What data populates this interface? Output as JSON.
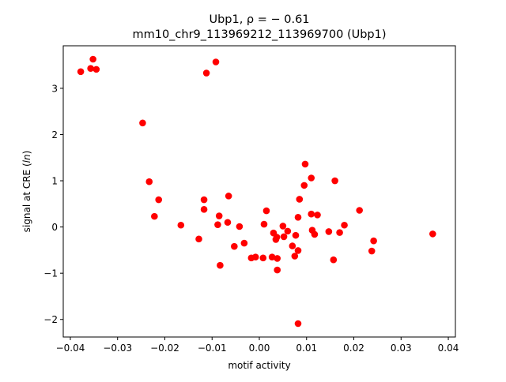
{
  "chart_data": {
    "type": "scatter",
    "title_line1": "Ubp1, ρ = − 0.61",
    "title_line2": "mm10_chr9_113969212_113969700 (Ubp1)",
    "xlabel": "motif activity",
    "ylabel": "signal at CRE (ln)",
    "xlim": [
      -0.0415,
      0.0415
    ],
    "ylim": [
      -2.38,
      3.92
    ],
    "x_ticks": [
      -0.04,
      -0.03,
      -0.02,
      -0.01,
      0.0,
      0.01,
      0.02,
      0.03,
      0.04
    ],
    "x_tick_labels": [
      "−0.04",
      "−0.03",
      "−0.02",
      "−0.01",
      "0.00",
      "0.01",
      "0.02",
      "0.03",
      "0.04"
    ],
    "y_ticks": [
      -2,
      -1,
      0,
      1,
      2,
      3
    ],
    "y_tick_labels": [
      "−2",
      "−1",
      "0",
      "1",
      "2",
      "3"
    ],
    "grid": false,
    "marker_color": "#ff0000",
    "points": [
      {
        "x": -0.0378,
        "y": 3.36
      },
      {
        "x": -0.0357,
        "y": 3.43
      },
      {
        "x": -0.0352,
        "y": 3.63
      },
      {
        "x": -0.0345,
        "y": 3.41
      },
      {
        "x": -0.0247,
        "y": 2.25
      },
      {
        "x": -0.0233,
        "y": 0.98
      },
      {
        "x": -0.0222,
        "y": 0.23
      },
      {
        "x": -0.0213,
        "y": 0.59
      },
      {
        "x": -0.0166,
        "y": 0.04
      },
      {
        "x": -0.0128,
        "y": -0.26
      },
      {
        "x": -0.0117,
        "y": 0.59
      },
      {
        "x": -0.0117,
        "y": 0.38
      },
      {
        "x": -0.0112,
        "y": 3.33
      },
      {
        "x": -0.0092,
        "y": 3.57
      },
      {
        "x": -0.0088,
        "y": 0.05
      },
      {
        "x": -0.0085,
        "y": 0.24
      },
      {
        "x": -0.0083,
        "y": -0.83
      },
      {
        "x": -0.0067,
        "y": 0.1
      },
      {
        "x": -0.0065,
        "y": 0.67
      },
      {
        "x": -0.0053,
        "y": -0.42
      },
      {
        "x": -0.0042,
        "y": 0.01
      },
      {
        "x": -0.0032,
        "y": -0.35
      },
      {
        "x": -0.0017,
        "y": -0.67
      },
      {
        "x": -0.0008,
        "y": -0.65
      },
      {
        "x": 0.0008,
        "y": -0.67
      },
      {
        "x": 0.001,
        "y": 0.06
      },
      {
        "x": 0.0015,
        "y": 0.35
      },
      {
        "x": 0.0027,
        "y": -0.65
      },
      {
        "x": 0.003,
        "y": -0.13
      },
      {
        "x": 0.0035,
        "y": -0.27
      },
      {
        "x": 0.0037,
        "y": -0.22
      },
      {
        "x": 0.0038,
        "y": -0.68
      },
      {
        "x": 0.0038,
        "y": -0.93
      },
      {
        "x": 0.005,
        "y": 0.02
      },
      {
        "x": 0.0052,
        "y": -0.21
      },
      {
        "x": 0.006,
        "y": -0.09
      },
      {
        "x": 0.007,
        "y": -0.41
      },
      {
        "x": 0.0075,
        "y": -0.63
      },
      {
        "x": 0.0077,
        "y": -0.18
      },
      {
        "x": 0.0082,
        "y": -0.51
      },
      {
        "x": 0.0082,
        "y": 0.21
      },
      {
        "x": 0.0082,
        "y": -2.09
      },
      {
        "x": 0.0085,
        "y": 0.6
      },
      {
        "x": 0.0095,
        "y": 0.9
      },
      {
        "x": 0.0097,
        "y": 1.36
      },
      {
        "x": 0.011,
        "y": 1.06
      },
      {
        "x": 0.011,
        "y": 0.28
      },
      {
        "x": 0.0112,
        "y": -0.07
      },
      {
        "x": 0.0117,
        "y": -0.16
      },
      {
        "x": 0.0123,
        "y": 0.26
      },
      {
        "x": 0.0147,
        "y": -0.1
      },
      {
        "x": 0.0157,
        "y": -0.71
      },
      {
        "x": 0.016,
        "y": 1.0
      },
      {
        "x": 0.017,
        "y": -0.12
      },
      {
        "x": 0.018,
        "y": 0.04
      },
      {
        "x": 0.0212,
        "y": 0.36
      },
      {
        "x": 0.0238,
        "y": -0.52
      },
      {
        "x": 0.0242,
        "y": -0.3
      },
      {
        "x": 0.0367,
        "y": -0.15
      }
    ]
  }
}
